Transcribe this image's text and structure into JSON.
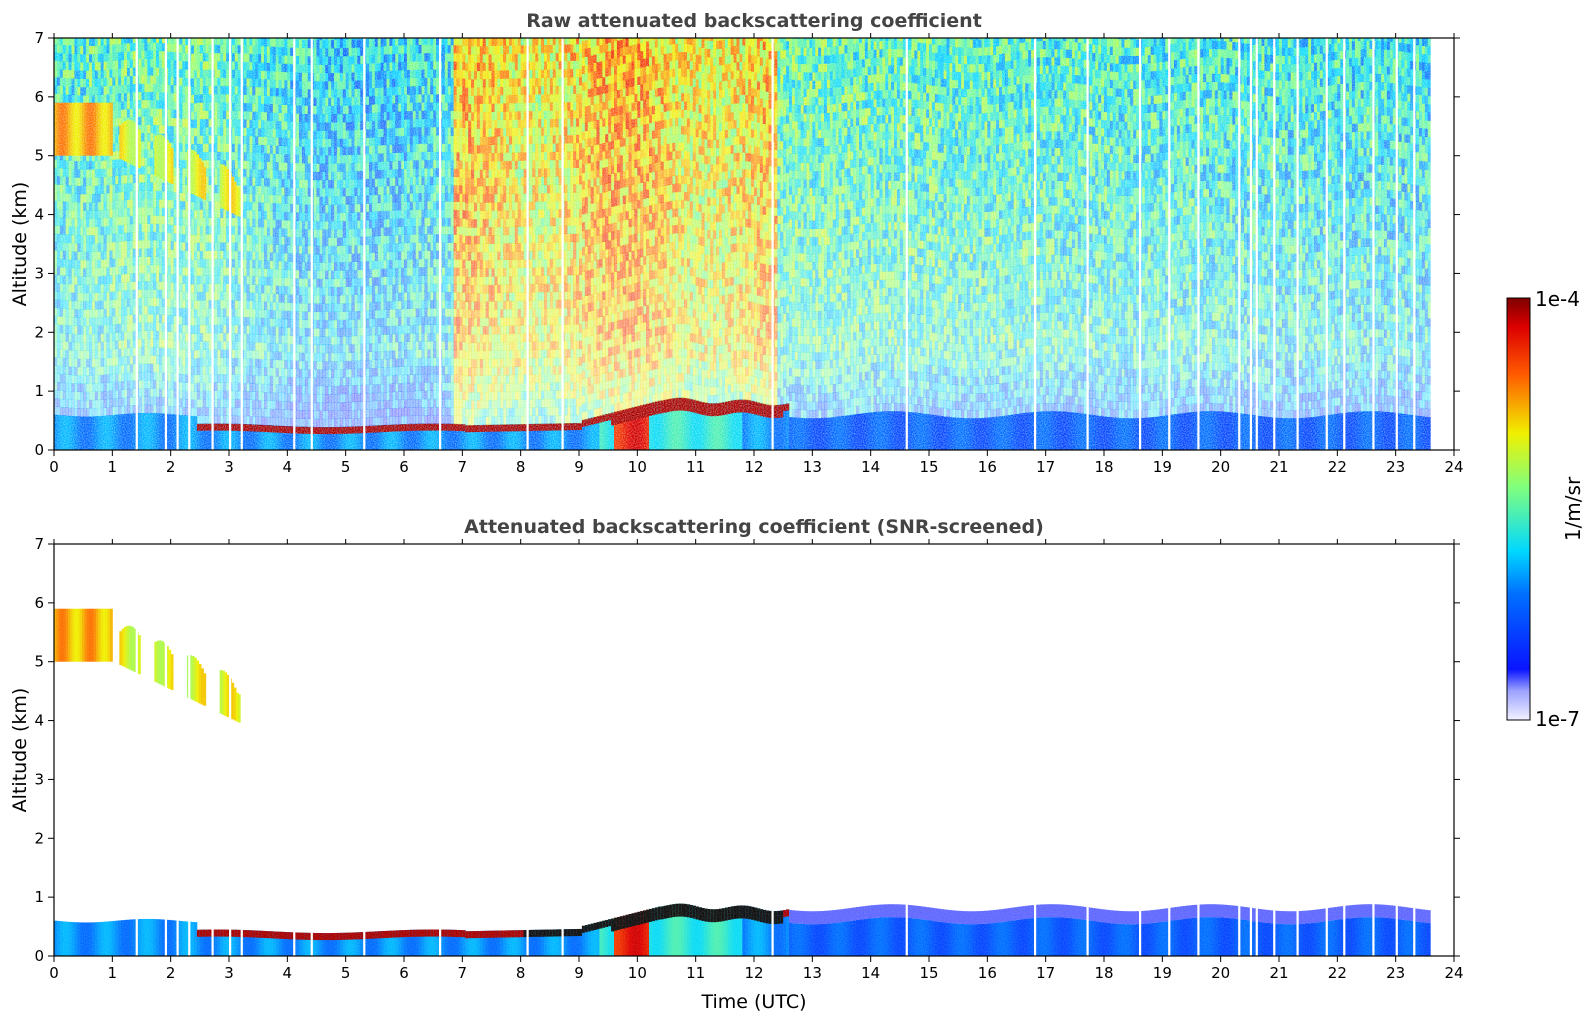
{
  "chart_data": [
    {
      "type": "heatmap",
      "title": "Raw attenuated backscattering coefficient",
      "xlabel": "",
      "ylabel": "Altitude (km)",
      "xlim": [
        0,
        24
      ],
      "ylim": [
        0,
        7
      ],
      "xticks": [
        "0",
        "1",
        "2",
        "3",
        "4",
        "5",
        "6",
        "7",
        "8",
        "9",
        "10",
        "11",
        "12",
        "13",
        "14",
        "15",
        "16",
        "17",
        "18",
        "19",
        "20",
        "21",
        "22",
        "23",
        "24"
      ],
      "yticks": [
        "0",
        "1",
        "2",
        "3",
        "4",
        "5",
        "6",
        "7"
      ],
      "data_end_time": 23.6,
      "features": [
        {
          "name": "cirrus",
          "time": [
            0,
            3.3
          ],
          "altitude": [
            3.8,
            6.0
          ],
          "level": 0.68
        },
        {
          "name": "boundary-layer-top",
          "time": [
            2.4,
            12.6
          ],
          "altitude": [
            0.35,
            0.9
          ],
          "level": 0.97
        },
        {
          "name": "dense-aerosol",
          "time": [
            9.6,
            10.2
          ],
          "altitude": [
            0,
            0.7
          ],
          "level": 0.86
        },
        {
          "name": "clear-air-noise",
          "time": [
            6.8,
            12.4
          ],
          "altitude": [
            1,
            7
          ],
          "level": 0.72
        }
      ]
    },
    {
      "type": "heatmap",
      "title": "Attenuated backscattering coefficient (SNR-screened)",
      "xlabel": "Time (UTC)",
      "ylabel": "Altitude (km)",
      "xlim": [
        0,
        24
      ],
      "ylim": [
        0,
        7
      ],
      "xticks": [
        "0",
        "1",
        "2",
        "3",
        "4",
        "5",
        "6",
        "7",
        "8",
        "9",
        "10",
        "11",
        "12",
        "13",
        "14",
        "15",
        "16",
        "17",
        "18",
        "19",
        "20",
        "21",
        "22",
        "23",
        "24"
      ],
      "yticks": [
        "0",
        "1",
        "2",
        "3",
        "4",
        "5",
        "6",
        "7"
      ],
      "data_end_time": 23.6,
      "features": [
        {
          "name": "cirrus",
          "time": [
            0,
            3.3
          ],
          "altitude": [
            3.8,
            6.1
          ],
          "level": 0.68
        },
        {
          "name": "boundary-layer-top",
          "time": [
            2.4,
            12.6
          ],
          "altitude": [
            0.35,
            0.95
          ],
          "level": 0.97
        },
        {
          "name": "dense-aerosol",
          "time": [
            9.6,
            10.2
          ],
          "altitude": [
            0,
            0.7
          ],
          "level": 0.86
        }
      ]
    }
  ],
  "colorbar": {
    "max_label": "1e-4",
    "min_label": "1e-7",
    "unit": "1/m/sr",
    "colormap": "jet"
  }
}
